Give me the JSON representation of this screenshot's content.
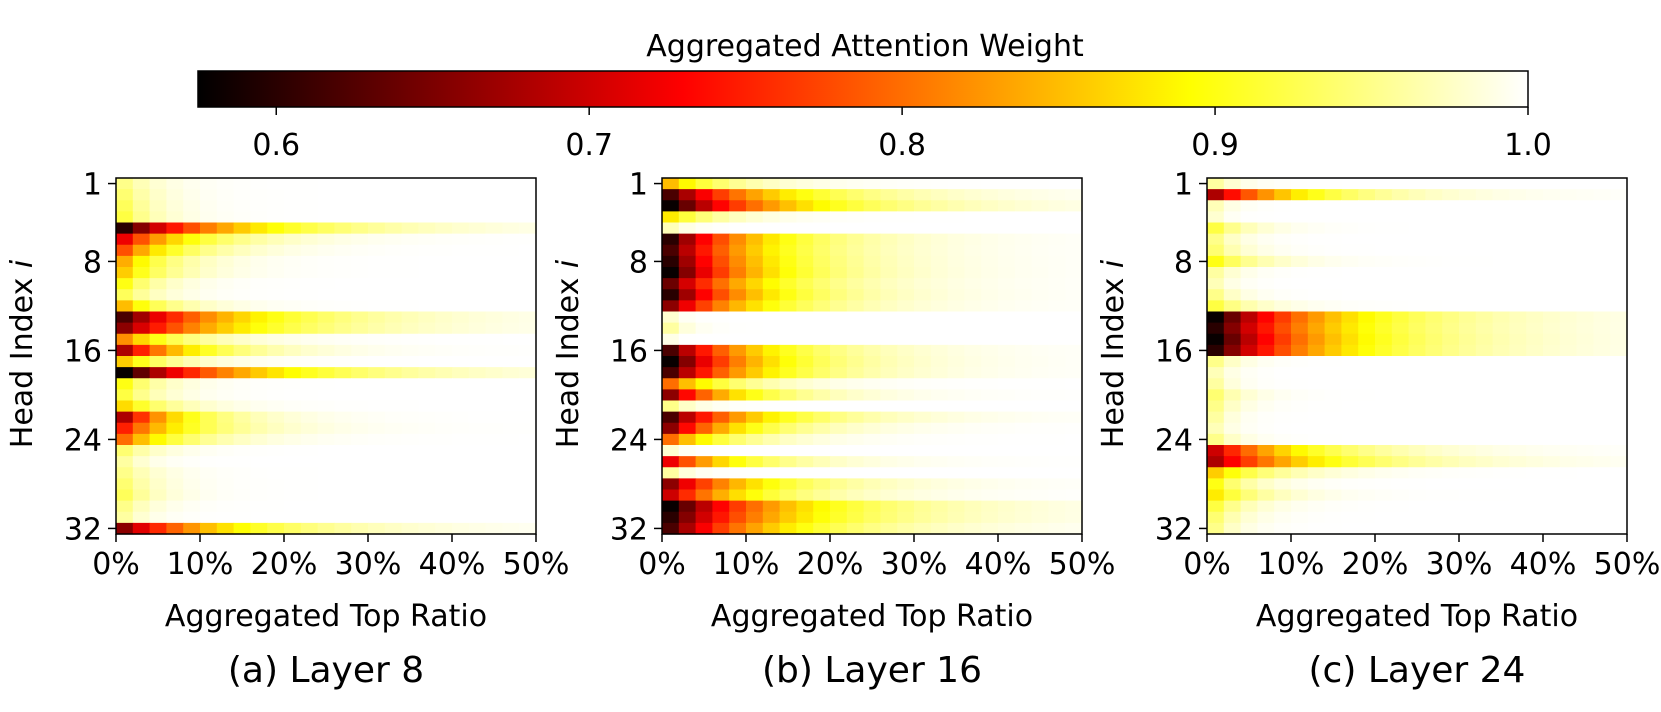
{
  "colorbar": {
    "title": "Aggregated Attention Weight",
    "vmin": 0.575,
    "vmax": 1.0,
    "ticks": [
      0.6,
      0.7,
      0.8,
      0.9,
      1.0
    ],
    "tick_labels": [
      "0.6",
      "0.7",
      "0.8",
      "0.9",
      "1.0"
    ],
    "colormap": "hot",
    "colormap_stops": [
      "#000000",
      "#ff0000",
      "#ffff00",
      "#ffffff"
    ]
  },
  "chart_data": [
    {
      "type": "heatmap",
      "caption": "(a) Layer 8",
      "xlabel": "Aggregated Top Ratio",
      "ylabel_text": "Head Index ",
      "ylabel_var": "i",
      "xlim": [
        0,
        50
      ],
      "ylim": [
        1,
        32
      ],
      "xticks": [
        0,
        10,
        20,
        30,
        40,
        50
      ],
      "xtick_labels": [
        "0%",
        "10%",
        "20%",
        "30%",
        "40%",
        "50%"
      ],
      "yticks": [
        1,
        8,
        16,
        24,
        32
      ],
      "ytick_labels": [
        "1",
        "8",
        "16",
        "24",
        "32"
      ],
      "n_heads": 32,
      "n_columns": 25,
      "row_min_weight": [
        0.95,
        0.94,
        0.93,
        0.92,
        0.6,
        0.72,
        0.78,
        0.84,
        0.86,
        0.9,
        0.93,
        0.85,
        0.62,
        0.66,
        0.82,
        0.68,
        0.86,
        0.58,
        0.9,
        0.92,
        0.87,
        0.68,
        0.75,
        0.8,
        0.94,
        0.96,
        0.95,
        0.94,
        0.93,
        0.95,
        0.96,
        0.66
      ],
      "row_spread": [
        0.06,
        0.06,
        0.06,
        0.06,
        0.2,
        0.12,
        0.1,
        0.08,
        0.08,
        0.06,
        0.06,
        0.08,
        0.2,
        0.2,
        0.1,
        0.12,
        0.08,
        0.22,
        0.06,
        0.06,
        0.08,
        0.1,
        0.12,
        0.1,
        0.06,
        0.04,
        0.06,
        0.06,
        0.06,
        0.05,
        0.04,
        0.18
      ]
    },
    {
      "type": "heatmap",
      "caption": "(b) Layer 16",
      "xlabel": "Aggregated Top Ratio",
      "ylabel_text": "Head Index ",
      "ylabel_var": "i",
      "xlim": [
        0,
        50
      ],
      "ylim": [
        1,
        32
      ],
      "xticks": [
        0,
        10,
        20,
        30,
        40,
        50
      ],
      "xtick_labels": [
        "0%",
        "10%",
        "20%",
        "30%",
        "40%",
        "50%"
      ],
      "yticks": [
        1,
        8,
        16,
        24,
        32
      ],
      "ytick_labels": [
        "1",
        "8",
        "16",
        "24",
        "32"
      ],
      "n_heads": 32,
      "n_columns": 25,
      "row_min_weight": [
        0.85,
        0.62,
        0.58,
        0.88,
        0.97,
        0.6,
        0.62,
        0.6,
        0.58,
        0.64,
        0.6,
        0.66,
        0.98,
        0.96,
        0.99,
        0.62,
        0.58,
        0.62,
        0.8,
        0.66,
        0.95,
        0.62,
        0.66,
        0.8,
        0.98,
        0.72,
        0.96,
        0.66,
        0.7,
        0.58,
        0.6,
        0.62
      ],
      "row_spread": [
        0.1,
        0.18,
        0.2,
        0.08,
        0.03,
        0.15,
        0.15,
        0.15,
        0.15,
        0.15,
        0.15,
        0.15,
        0.02,
        0.03,
        0.01,
        0.15,
        0.15,
        0.15,
        0.1,
        0.12,
        0.04,
        0.15,
        0.12,
        0.1,
        0.02,
        0.12,
        0.03,
        0.15,
        0.14,
        0.2,
        0.2,
        0.18
      ]
    },
    {
      "type": "heatmap",
      "caption": "(c) Layer 24",
      "xlabel": "Aggregated Top Ratio",
      "ylabel_text": "Head Index ",
      "ylabel_var": "i",
      "xlim": [
        0,
        50
      ],
      "ylim": [
        1,
        32
      ],
      "xticks": [
        0,
        10,
        20,
        30,
        40,
        50
      ],
      "xtick_labels": [
        "0%",
        "10%",
        "20%",
        "30%",
        "40%",
        "50%"
      ],
      "yticks": [
        1,
        8,
        16,
        24,
        32
      ],
      "ytick_labels": [
        "1",
        "8",
        "16",
        "24",
        "32"
      ],
      "n_heads": 32,
      "n_columns": 25,
      "row_min_weight": [
        0.96,
        0.68,
        0.97,
        0.98,
        0.92,
        0.95,
        0.94,
        0.9,
        0.96,
        0.97,
        0.95,
        0.92,
        0.58,
        0.6,
        0.58,
        0.6,
        0.95,
        0.97,
        0.96,
        0.94,
        0.95,
        0.96,
        0.97,
        0.95,
        0.7,
        0.68,
        0.86,
        0.9,
        0.88,
        0.92,
        0.94,
        0.95
      ],
      "row_spread": [
        0.04,
        0.15,
        0.03,
        0.02,
        0.06,
        0.04,
        0.05,
        0.08,
        0.04,
        0.03,
        0.04,
        0.07,
        0.2,
        0.2,
        0.2,
        0.2,
        0.04,
        0.03,
        0.03,
        0.05,
        0.04,
        0.03,
        0.03,
        0.04,
        0.15,
        0.18,
        0.1,
        0.06,
        0.08,
        0.06,
        0.05,
        0.04
      ]
    }
  ]
}
